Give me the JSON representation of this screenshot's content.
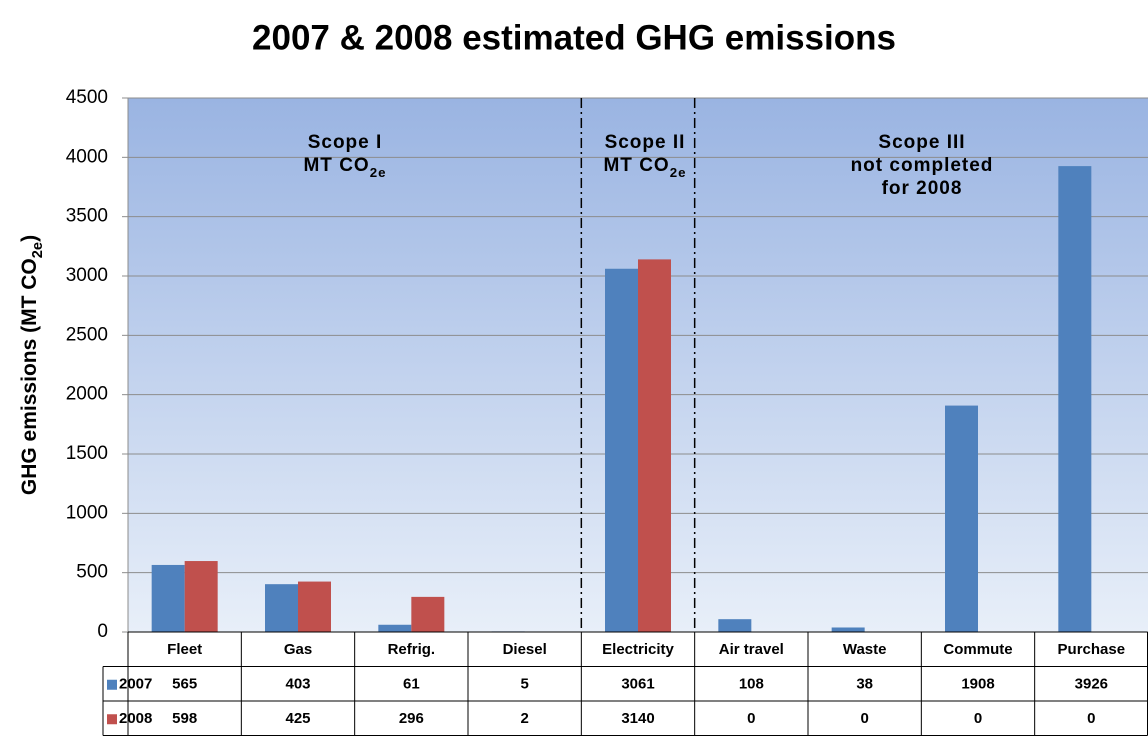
{
  "chart_data": {
    "type": "bar",
    "title": "2007 & 2008 estimated GHG emissions",
    "ylabel": [
      {
        "text": "GHG emissions  (MT CO"
      },
      {
        "text": "2e",
        "sub": true
      },
      {
        "text": ")"
      }
    ],
    "categories": [
      "Fleet",
      "Gas",
      "Refrig.",
      "Diesel",
      "Electricity",
      "Air travel",
      "Waste",
      "Commute",
      "Purchase"
    ],
    "series": [
      {
        "name": "2007",
        "color": "#4f81bd",
        "values": [
          565,
          403,
          61,
          5,
          3061,
          108,
          38,
          1908,
          3926
        ]
      },
      {
        "name": "2008",
        "color": "#c0504d",
        "values": [
          598,
          425,
          296,
          2,
          3140,
          0,
          0,
          0,
          0
        ]
      }
    ],
    "ylim": [
      0,
      4500
    ],
    "yticks": [
      0,
      500,
      1000,
      1500,
      2000,
      2500,
      3000,
      3500,
      4000,
      4500
    ],
    "grid": true,
    "annotations": [
      {
        "lines": [
          [
            {
              "text": "Scope I"
            }
          ],
          [
            {
              "text": "MT CO"
            },
            {
              "text": "2e",
              "sub": true
            }
          ]
        ]
      },
      {
        "lines": [
          [
            {
              "text": "Scope II"
            }
          ],
          [
            {
              "text": "MT CO"
            },
            {
              "text": "2e",
              "sub": true
            }
          ]
        ]
      },
      {
        "lines": [
          [
            {
              "text": "Scope III"
            }
          ],
          [
            {
              "text": "not completed"
            }
          ],
          [
            {
              "text": "for 2008"
            }
          ]
        ]
      }
    ]
  }
}
